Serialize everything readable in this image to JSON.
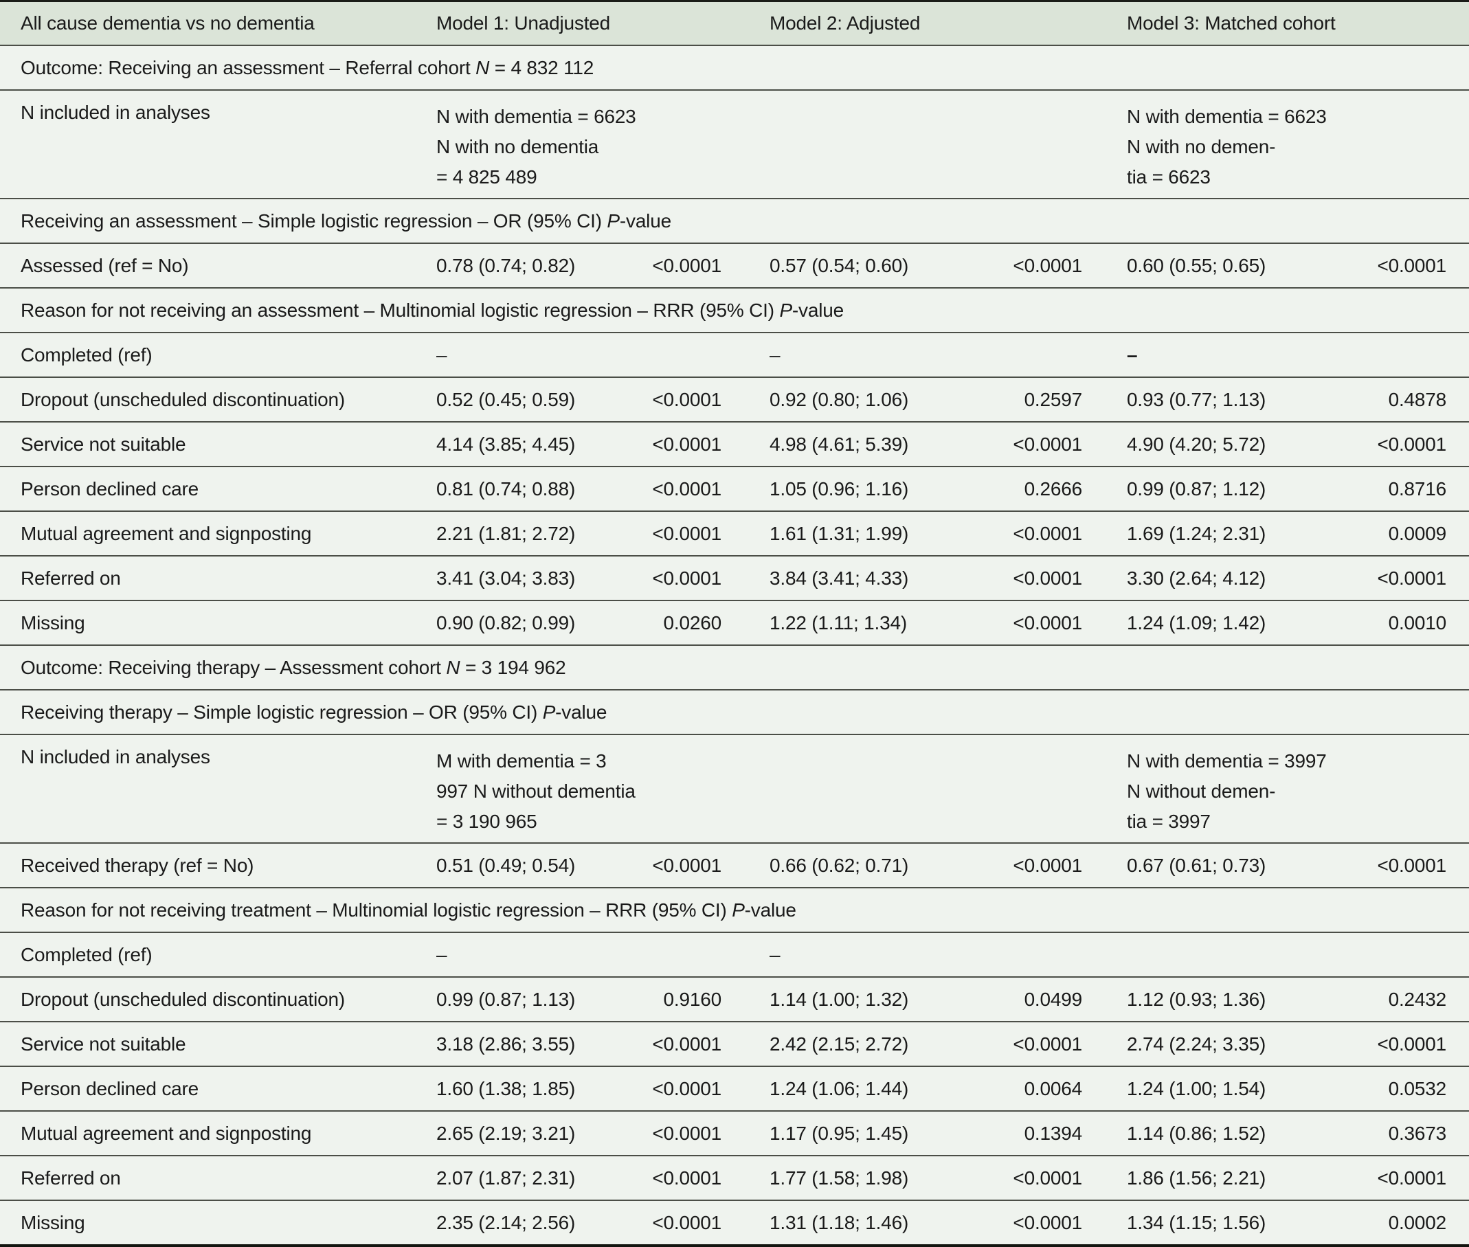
{
  "table": {
    "header": {
      "col1": "All cause dementia vs no dementia",
      "model1": "Model 1: Unadjusted",
      "model2": "Model 2: Adjusted",
      "model3": "Model 3: Matched cohort"
    },
    "rows": [
      {
        "type": "section",
        "segments": [
          {
            "t": "Outcome: Receiving an assessment – Referral cohort ",
            "i": false
          },
          {
            "t": "N",
            "i": true
          },
          {
            "t": " = 4 832 112",
            "i": false
          }
        ]
      },
      {
        "type": "n_included",
        "label": "N included in analyses",
        "model1_lines": [
          "N with dementia = 6623",
          "N with no dementia",
          "= 4 825 489"
        ],
        "model3_lines": [
          "N with dementia = 6623",
          "N with no demen-",
          "tia = 6623"
        ]
      },
      {
        "type": "section",
        "segments": [
          {
            "t": "Receiving an assessment – Simple logistic regression – OR (95% CI) ",
            "i": false
          },
          {
            "t": "P",
            "i": true
          },
          {
            "t": "-value",
            "i": false
          }
        ]
      },
      {
        "type": "data",
        "label": "Assessed (ref = No)",
        "or1": "0.78 (0.74; 0.82)",
        "p1": "<0.0001",
        "or2": "0.57 (0.54; 0.60)",
        "p2": "<0.0001",
        "or3": "0.60 (0.55; 0.65)",
        "p3": "<0.0001",
        "bold3": false
      },
      {
        "type": "section",
        "segments": [
          {
            "t": "Reason for not receiving an assessment – Multinomial logistic regression – RRR (95% CI) ",
            "i": false
          },
          {
            "t": "P",
            "i": true
          },
          {
            "t": "-value",
            "i": false
          }
        ]
      },
      {
        "type": "data",
        "label": "Completed (ref)",
        "or1": "–",
        "p1": "",
        "or2": "–",
        "p2": "",
        "or3": "–",
        "p3": "",
        "bold3": true
      },
      {
        "type": "data",
        "label": "Dropout (unscheduled discontinuation)",
        "or1": "0.52 (0.45; 0.59)",
        "p1": "<0.0001",
        "or2": "0.92 (0.80; 1.06)",
        "p2": "0.2597",
        "or3": "0.93 (0.77; 1.13)",
        "p3": "0.4878",
        "bold3": false
      },
      {
        "type": "data",
        "label": "Service not suitable",
        "or1": "4.14 (3.85; 4.45)",
        "p1": "<0.0001",
        "or2": "4.98 (4.61; 5.39)",
        "p2": "<0.0001",
        "or3": "4.90 (4.20; 5.72)",
        "p3": "<0.0001",
        "bold3": false
      },
      {
        "type": "data",
        "label": "Person declined care",
        "or1": "0.81 (0.74; 0.88)",
        "p1": "<0.0001",
        "or2": "1.05 (0.96; 1.16)",
        "p2": "0.2666",
        "or3": "0.99 (0.87; 1.12)",
        "p3": "0.8716",
        "bold3": false
      },
      {
        "type": "data",
        "label": "Mutual agreement and signposting",
        "or1": "2.21 (1.81; 2.72)",
        "p1": "<0.0001",
        "or2": "1.61 (1.31; 1.99)",
        "p2": "<0.0001",
        "or3": "1.69 (1.24; 2.31)",
        "p3": "0.0009",
        "bold3": false
      },
      {
        "type": "data",
        "label": "Referred on",
        "or1": "3.41 (3.04; 3.83)",
        "p1": "<0.0001",
        "or2": "3.84 (3.41; 4.33)",
        "p2": "<0.0001",
        "or3": "3.30 (2.64; 4.12)",
        "p3": "<0.0001",
        "bold3": false
      },
      {
        "type": "data",
        "label": "Missing",
        "or1": "0.90 (0.82; 0.99)",
        "p1": "0.0260",
        "or2": "1.22 (1.11; 1.34)",
        "p2": "<0.0001",
        "or3": "1.24 (1.09; 1.42)",
        "p3": "0.0010",
        "bold3": false
      },
      {
        "type": "section",
        "segments": [
          {
            "t": "Outcome: Receiving therapy – Assessment cohort ",
            "i": false
          },
          {
            "t": "N",
            "i": true
          },
          {
            "t": " = 3 194 962",
            "i": false
          }
        ]
      },
      {
        "type": "section",
        "segments": [
          {
            "t": "Receiving therapy – Simple logistic regression – OR (95% CI) ",
            "i": false
          },
          {
            "t": "P",
            "i": true
          },
          {
            "t": "-value",
            "i": false
          }
        ]
      },
      {
        "type": "n_included",
        "label": "N included in analyses",
        "model1_lines": [
          "M with dementia = 3",
          "997 N without dementia",
          "= 3 190 965"
        ],
        "model3_lines": [
          "N with dementia = 3997",
          "N without demen-",
          "tia = 3997"
        ]
      },
      {
        "type": "data",
        "label": "Received therapy (ref = No)",
        "or1": "0.51 (0.49; 0.54)",
        "p1": "<0.0001",
        "or2": "0.66 (0.62; 0.71)",
        "p2": "<0.0001",
        "or3": "0.67 (0.61; 0.73)",
        "p3": "<0.0001",
        "bold3": false
      },
      {
        "type": "section",
        "segments": [
          {
            "t": "Reason for not receiving treatment – Multinomial logistic regression – RRR (95% CI) ",
            "i": false
          },
          {
            "t": "P",
            "i": true
          },
          {
            "t": "-value",
            "i": false
          }
        ]
      },
      {
        "type": "data",
        "label": "Completed (ref)",
        "or1": "–",
        "p1": "",
        "or2": "–",
        "p2": "",
        "or3": "",
        "p3": "",
        "bold3": false
      },
      {
        "type": "data",
        "label": "Dropout (unscheduled discontinuation)",
        "or1": "0.99 (0.87; 1.13)",
        "p1": "0.9160",
        "or2": "1.14 (1.00; 1.32)",
        "p2": "0.0499",
        "or3": "1.12 (0.93; 1.36)",
        "p3": "0.2432",
        "bold3": false
      },
      {
        "type": "data",
        "label": "Service not suitable",
        "or1": "3.18 (2.86; 3.55)",
        "p1": "<0.0001",
        "or2": "2.42 (2.15; 2.72)",
        "p2": "<0.0001",
        "or3": "2.74 (2.24; 3.35)",
        "p3": "<0.0001",
        "bold3": false
      },
      {
        "type": "data",
        "label": "Person declined care",
        "or1": "1.60 (1.38; 1.85)",
        "p1": "<0.0001",
        "or2": "1.24 (1.06; 1.44)",
        "p2": "0.0064",
        "or3": "1.24 (1.00; 1.54)",
        "p3": "0.0532",
        "bold3": false
      },
      {
        "type": "data",
        "label": "Mutual agreement and signposting",
        "or1": "2.65 (2.19; 3.21)",
        "p1": "<0.0001",
        "or2": "1.17 (0.95; 1.45)",
        "p2": "0.1394",
        "or3": "1.14 (0.86; 1.52)",
        "p3": "0.3673",
        "bold3": false
      },
      {
        "type": "data",
        "label": "Referred on",
        "or1": "2.07 (1.87; 2.31)",
        "p1": "<0.0001",
        "or2": "1.77 (1.58; 1.98)",
        "p2": "<0.0001",
        "or3": "1.86 (1.56; 2.21)",
        "p3": "<0.0001",
        "bold3": false
      },
      {
        "type": "data",
        "label": "Missing",
        "or1": "2.35 (2.14; 2.56)",
        "p1": "<0.0001",
        "or2": "1.31 (1.18; 1.46)",
        "p2": "<0.0001",
        "or3": "1.34 (1.15; 1.56)",
        "p3": "0.0002",
        "bold3": false
      }
    ],
    "colors": {
      "header_bg": "#dbe4d8",
      "body_bg": "#eff3ee",
      "rule": "#4b4e47",
      "text": "#1a1a1a"
    }
  }
}
